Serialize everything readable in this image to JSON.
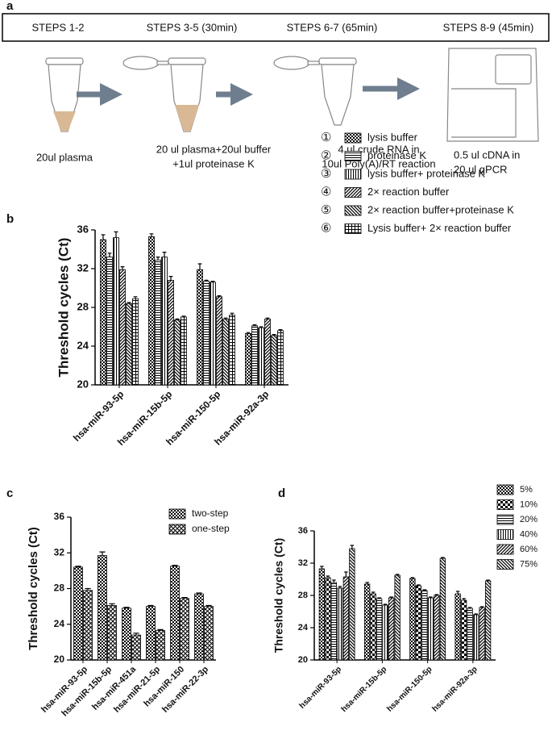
{
  "workflow": {
    "panel": "a",
    "steps": [
      {
        "title": "STEPS 1-2",
        "caption": [
          "20ul plasma"
        ]
      },
      {
        "title": "STEPS 3-5 (30min)",
        "caption": [
          "20 ul plasma+20ul buffer",
          "+1ul proteinase K"
        ]
      },
      {
        "title": "STEPS 6-7 (65min)",
        "caption": [
          "4 ul crude RNA in",
          "10ul Poly(A)/RT reaction"
        ]
      },
      {
        "title": "STEPS 8-9 (45min)",
        "caption": [
          "0.5 ul cDNA in",
          "20 ul qPCR"
        ]
      }
    ]
  },
  "chart_data": [
    {
      "type": "bar",
      "panel": "b",
      "y_label": "Threshold cycles (Ct)",
      "categories": [
        "hsa-miR-93-5p",
        "hsa-miR-15b-5p",
        "hsa-miR-150-5p",
        "hsa-miR-92a-3p"
      ],
      "ylim": [
        20,
        36
      ],
      "yticks": [
        20,
        24,
        28,
        32,
        36
      ],
      "series": [
        {
          "name": "lysis buffer",
          "number": "①",
          "color": "#000000",
          "pattern": "checker",
          "values": [
            35.0,
            35.3,
            31.9,
            25.3
          ],
          "errors": [
            0.5,
            0.3,
            0.6,
            0.1
          ]
        },
        {
          "name": "proteinase K",
          "number": "②",
          "color": "#000000",
          "pattern": "hlines",
          "values": [
            33.2,
            32.9,
            30.7,
            26.1
          ],
          "errors": [
            0.4,
            0.3,
            0.1,
            0.1
          ]
        },
        {
          "name": "lysis buffer+ proteinase K",
          "number": "③",
          "color": "#000000",
          "pattern": "vlines",
          "values": [
            35.2,
            33.2,
            30.6,
            25.9
          ],
          "errors": [
            0.6,
            0.5,
            0.1,
            0.1
          ]
        },
        {
          "name": "2× reaction buffer",
          "number": "④",
          "color": "#000000",
          "pattern": "diag",
          "values": [
            31.9,
            30.8,
            29.1,
            26.8
          ],
          "errors": [
            0.3,
            0.4,
            0.1,
            0.1
          ]
        },
        {
          "name": "2× reaction buffer+proteinase K",
          "number": "⑤",
          "color": "#000000",
          "pattern": "diag2",
          "values": [
            28.4,
            26.7,
            26.8,
            25.1
          ],
          "errors": [
            0.1,
            0.1,
            0.1,
            0.1
          ]
        },
        {
          "name": "Lysis buffer+ 2× reaction buffer",
          "number": "⑥",
          "color": "#000000",
          "pattern": "grid",
          "values": [
            28.9,
            27.0,
            27.2,
            25.6
          ],
          "errors": [
            0.2,
            0.1,
            0.2,
            0.1
          ]
        }
      ]
    },
    {
      "type": "bar",
      "panel": "c",
      "y_label": "Threshold cycles (Ct)",
      "categories": [
        "hsa-miR-93-5p",
        "hsa-miR-15b-5p",
        "hsa-miR-451a",
        "hsa-miR-21-5p",
        "hsa-miR-150",
        "hsa-miR-22-3p"
      ],
      "ylim": [
        20,
        36
      ],
      "yticks": [
        20,
        24,
        28,
        32,
        36
      ],
      "series": [
        {
          "name": "two-step",
          "color": "#000000",
          "pattern": "checker",
          "values": [
            30.4,
            31.7,
            25.8,
            26.0,
            30.5,
            27.4
          ],
          "errors": [
            0.1,
            0.4,
            0.1,
            0.1,
            0.1,
            0.1
          ]
        },
        {
          "name": "one-step",
          "color": "#000000",
          "pattern": "lattice",
          "values": [
            27.8,
            26.1,
            22.8,
            23.3,
            26.9,
            26.0
          ],
          "errors": [
            0.2,
            0.2,
            0.2,
            0.1,
            0.1,
            0.1
          ]
        }
      ]
    },
    {
      "type": "bar",
      "panel": "d",
      "y_label": "Threshold cycles (Ct)",
      "categories": [
        "hsa-miR-93-5p",
        "hsa-miR-15b-5p",
        "hsa-miR-150-5p",
        "hsa-miR-92a-3p"
      ],
      "ylim": [
        20,
        36
      ],
      "yticks": [
        20,
        24,
        28,
        32,
        36
      ],
      "series": [
        {
          "name": "5%",
          "color": "#000000",
          "pattern": "checker",
          "values": [
            31.3,
            29.4,
            30.1,
            28.2
          ],
          "errors": [
            0.3,
            0.2,
            0.1,
            0.3
          ]
        },
        {
          "name": "10%",
          "color": "#000000",
          "pattern": "bigchecker",
          "values": [
            30.2,
            28.2,
            29.2,
            27.4
          ],
          "errors": [
            0.2,
            0.2,
            0.1,
            0.2
          ]
        },
        {
          "name": "20%",
          "color": "#000000",
          "pattern": "hlines",
          "values": [
            29.6,
            27.6,
            28.6,
            26.4
          ],
          "errors": [
            0.3,
            0.1,
            0.1,
            0.1
          ]
        },
        {
          "name": "40%",
          "color": "#000000",
          "pattern": "vlines",
          "values": [
            28.9,
            26.8,
            27.7,
            25.6
          ],
          "errors": [
            0.2,
            0.1,
            0.1,
            0.1
          ]
        },
        {
          "name": "60%",
          "color": "#000000",
          "pattern": "diag",
          "values": [
            30.3,
            27.7,
            28.0,
            26.5
          ],
          "errors": [
            0.6,
            0.1,
            0.1,
            0.1
          ]
        },
        {
          "name": "75%",
          "color": "#000000",
          "pattern": "diag2",
          "values": [
            33.8,
            30.5,
            32.6,
            29.8
          ],
          "errors": [
            0.4,
            0.1,
            0.1,
            0.1
          ]
        }
      ]
    }
  ]
}
